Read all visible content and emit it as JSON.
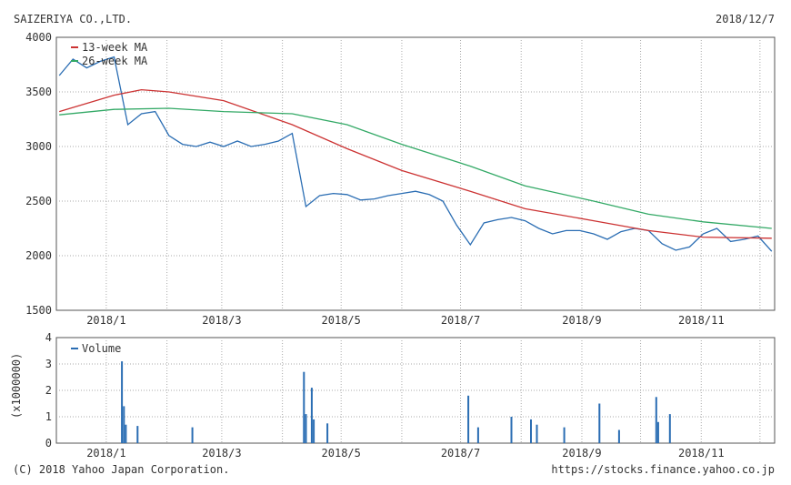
{
  "header": {
    "company": "SAIZERIYA CO.,LTD.",
    "date": "2018/12/7"
  },
  "footer": {
    "copyright": "(C) 2018 Yahoo Japan Corporation.",
    "url": "https://stocks.finance.yahoo.co.jp"
  },
  "chart_data": [
    {
      "type": "line",
      "title": "",
      "ylim": [
        1500,
        4000
      ],
      "yticks": [
        "4000",
        "3500",
        "3000",
        "2500",
        "2000",
        "1500"
      ],
      "xticks": [
        "2018/1",
        "2018/3",
        "2018/5",
        "2018/7",
        "2018/9",
        "2018/11"
      ],
      "grid": true,
      "legend_position": "top-left",
      "colors": {
        "price": "#2a6db3",
        "ma13": "#cc3333",
        "ma26": "#33a966"
      },
      "series": [
        {
          "name": "",
          "key": "price",
          "x": [
            "2017/12/8",
            "2017/12/15",
            "2017/12/22",
            "2017/12/29",
            "2018/1/5",
            "2018/1/12",
            "2018/1/19",
            "2018/1/26",
            "2018/2/2",
            "2018/2/9",
            "2018/2/16",
            "2018/2/23",
            "2018/3/2",
            "2018/3/9",
            "2018/3/16",
            "2018/3/23",
            "2018/3/30",
            "2018/4/6",
            "2018/4/13",
            "2018/4/20",
            "2018/4/27",
            "2018/5/4",
            "2018/5/11",
            "2018/5/18",
            "2018/5/25",
            "2018/6/1",
            "2018/6/8",
            "2018/6/15",
            "2018/6/22",
            "2018/6/29",
            "2018/7/6",
            "2018/7/13",
            "2018/7/20",
            "2018/7/27",
            "2018/8/3",
            "2018/8/10",
            "2018/8/17",
            "2018/8/24",
            "2018/8/31",
            "2018/9/7",
            "2018/9/14",
            "2018/9/21",
            "2018/9/28",
            "2018/10/5",
            "2018/10/12",
            "2018/10/19",
            "2018/10/26",
            "2018/11/2",
            "2018/11/9",
            "2018/11/16",
            "2018/11/23",
            "2018/11/30",
            "2018/12/7"
          ],
          "values": [
            3650,
            3800,
            3720,
            3780,
            3820,
            3200,
            3300,
            3320,
            3100,
            3020,
            3000,
            3040,
            3000,
            3050,
            3000,
            3020,
            3050,
            3120,
            2450,
            2550,
            2570,
            2560,
            2510,
            2520,
            2550,
            2570,
            2590,
            2560,
            2500,
            2280,
            2100,
            2300,
            2330,
            2350,
            2320,
            2250,
            2200,
            2230,
            2230,
            2200,
            2150,
            2220,
            2250,
            2230,
            2110,
            2050,
            2080,
            2200,
            2250,
            2130,
            2150,
            2180,
            2040
          ]
        },
        {
          "name": "13-week MA",
          "key": "ma13",
          "x": [
            "2017/12/8",
            "2018/1/5",
            "2018/1/19",
            "2018/2/2",
            "2018/3/2",
            "2018/4/6",
            "2018/5/4",
            "2018/6/1",
            "2018/7/6",
            "2018/8/3",
            "2018/9/7",
            "2018/10/5",
            "2018/11/2",
            "2018/12/7"
          ],
          "values": [
            3320,
            3470,
            3520,
            3500,
            3420,
            3200,
            2980,
            2780,
            2590,
            2430,
            2320,
            2230,
            2170,
            2160
          ]
        },
        {
          "name": "26-week MA",
          "key": "ma26",
          "x": [
            "2017/12/8",
            "2018/1/5",
            "2018/2/2",
            "2018/3/2",
            "2018/4/6",
            "2018/5/4",
            "2018/6/1",
            "2018/7/6",
            "2018/8/3",
            "2018/9/7",
            "2018/10/5",
            "2018/11/2",
            "2018/12/7"
          ],
          "values": [
            3290,
            3340,
            3350,
            3320,
            3300,
            3200,
            3020,
            2820,
            2640,
            2500,
            2380,
            2310,
            2250
          ]
        }
      ]
    },
    {
      "type": "bar",
      "ylabel": "(x1000000)",
      "ylim": [
        0,
        4
      ],
      "yticks": [
        "4",
        "3",
        "2",
        "1",
        "0"
      ],
      "xticks": [
        "2018/1",
        "2018/3",
        "2018/5",
        "2018/7",
        "2018/9",
        "2018/11"
      ],
      "grid": true,
      "legend_position": "top-left",
      "colors": {
        "volume": "#2a6db3"
      },
      "series": [
        {
          "name": "Volume",
          "x": [
            "2018/1/9",
            "2018/1/10",
            "2018/1/11",
            "2018/1/17",
            "2018/2/14",
            "2018/4/12",
            "2018/4/13",
            "2018/4/16",
            "2018/4/17",
            "2018/4/24",
            "2018/7/5",
            "2018/7/10",
            "2018/7/27",
            "2018/8/6",
            "2018/8/9",
            "2018/8/23",
            "2018/9/10",
            "2018/9/20",
            "2018/10/9",
            "2018/10/10",
            "2018/10/16"
          ],
          "values": [
            3.1,
            1.4,
            0.7,
            0.65,
            0.6,
            2.7,
            1.1,
            2.1,
            0.9,
            0.75,
            1.8,
            0.6,
            1.0,
            0.9,
            0.7,
            0.6,
            1.5,
            0.5,
            1.75,
            0.8,
            1.1
          ]
        }
      ]
    }
  ]
}
